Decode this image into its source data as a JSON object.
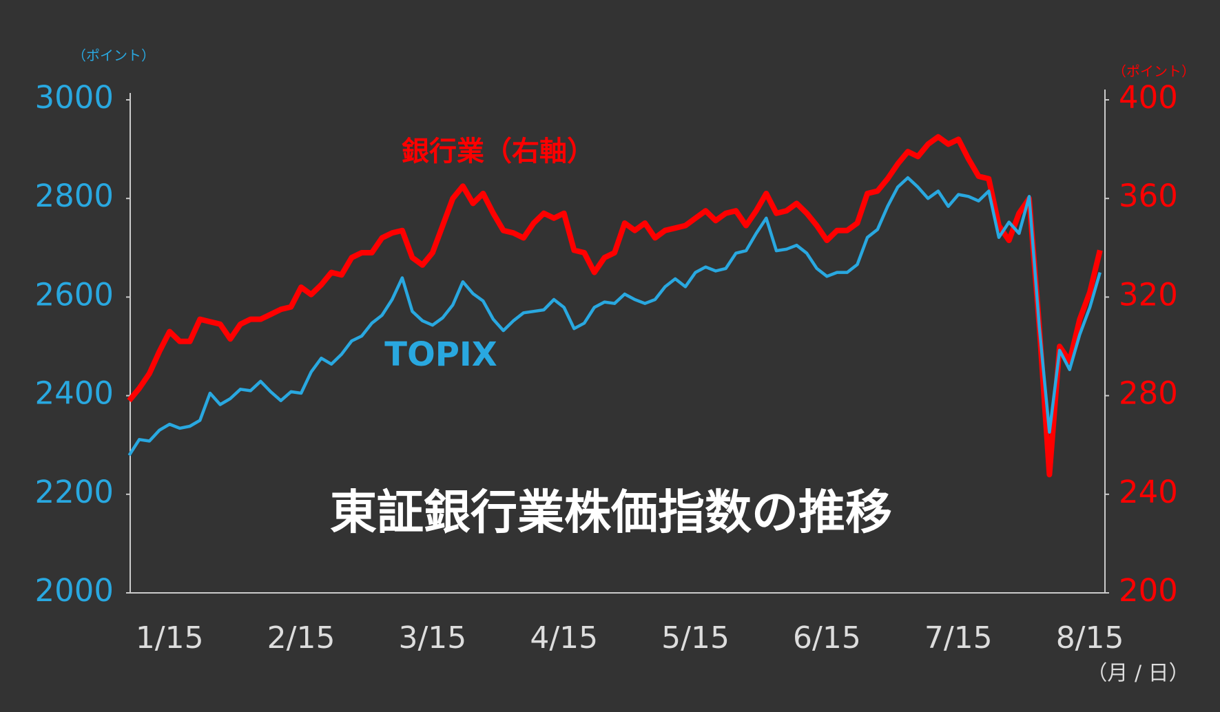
{
  "chart_data": {
    "type": "line",
    "title": "東証銀行業株価指数の推移",
    "y_unit": "（ポイント）",
    "y2_unit": "（ポイント）",
    "x_unit": "（月 / 日）",
    "categories": [
      null,
      null,
      null,
      null,
      "1/15",
      null,
      null,
      null,
      null,
      null,
      null,
      null,
      null,
      null,
      null,
      null,
      null,
      "2/15",
      null,
      null,
      null,
      null,
      null,
      null,
      null,
      null,
      null,
      null,
      null,
      null,
      "3/15",
      null,
      null,
      null,
      null,
      null,
      null,
      null,
      null,
      null,
      null,
      null,
      null,
      "4/15",
      null,
      null,
      null,
      null,
      null,
      null,
      null,
      null,
      null,
      null,
      null,
      null,
      "5/15",
      null,
      null,
      null,
      null,
      null,
      null,
      null,
      null,
      null,
      null,
      null,
      null,
      "6/15",
      null,
      null,
      null,
      null,
      null,
      null,
      null,
      null,
      null,
      null,
      null,
      null,
      "7/15",
      null,
      null,
      null,
      null,
      null,
      null,
      null,
      null,
      null,
      null,
      null,
      null,
      "8/15",
      null
    ],
    "ylim": [
      2000,
      3000
    ],
    "yticks": [
      2000,
      2200,
      2400,
      2600,
      2800,
      3000
    ],
    "y2lim": [
      200,
      400
    ],
    "y2ticks": [
      200,
      240,
      280,
      320,
      360,
      400
    ],
    "grid": false,
    "series": [
      {
        "name": "銀行業（右軸）",
        "color": "#ff0000",
        "axis": "y2",
        "values": [
          278,
          283,
          289,
          298,
          306,
          302,
          302,
          311,
          310,
          309,
          303,
          309,
          311,
          311,
          313,
          315,
          316,
          324,
          321,
          325,
          330,
          329,
          336,
          338,
          338,
          344,
          346,
          347,
          336,
          333,
          338,
          349,
          360,
          365,
          358,
          362,
          354,
          347,
          346,
          344,
          350,
          354,
          352,
          354,
          339,
          338,
          330,
          336,
          338,
          350,
          347,
          350,
          344,
          347,
          348,
          349,
          352,
          355,
          351,
          354,
          355,
          349,
          355,
          362,
          354,
          355,
          358,
          354,
          349,
          343,
          347,
          347,
          350,
          362,
          363,
          368,
          374,
          379,
          377,
          382,
          385,
          382,
          384,
          376,
          369,
          368,
          349,
          343,
          354,
          360,
          308,
          248,
          300,
          294,
          311,
          322,
          339
        ]
      },
      {
        "name": "TOPIX",
        "color": "#29a8e0",
        "values": [
          2279,
          2311,
          2308,
          2330,
          2342,
          2334,
          2338,
          2350,
          2405,
          2382,
          2394,
          2413,
          2410,
          2429,
          2408,
          2390,
          2408,
          2405,
          2448,
          2476,
          2464,
          2484,
          2511,
          2521,
          2547,
          2563,
          2595,
          2639,
          2571,
          2552,
          2543,
          2558,
          2584,
          2631,
          2607,
          2592,
          2555,
          2532,
          2552,
          2568,
          2571,
          2574,
          2595,
          2579,
          2536,
          2547,
          2579,
          2590,
          2587,
          2606,
          2595,
          2587,
          2595,
          2621,
          2637,
          2621,
          2650,
          2661,
          2653,
          2658,
          2689,
          2694,
          2729,
          2760,
          2694,
          2697,
          2705,
          2689,
          2658,
          2642,
          2650,
          2650,
          2666,
          2721,
          2737,
          2784,
          2823,
          2842,
          2823,
          2800,
          2815,
          2784,
          2808,
          2804,
          2795,
          2815,
          2721,
          2752,
          2729,
          2804,
          2539,
          2326,
          2492,
          2453,
          2524,
          2579,
          2650
        ]
      }
    ]
  }
}
